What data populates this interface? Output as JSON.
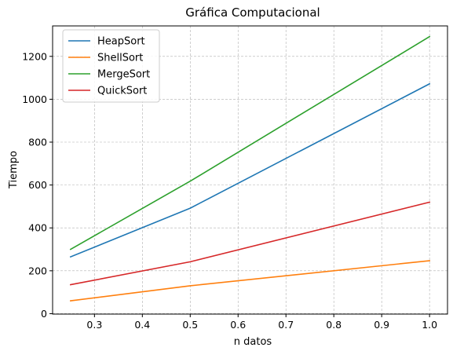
{
  "chart_data": {
    "type": "line",
    "title": "Gráfica Computacional",
    "xlabel": "n datos",
    "ylabel": "Tiempo",
    "x": [
      0.25,
      0.5,
      1.0
    ],
    "xlim": [
      0.2125,
      1.0375
    ],
    "ylim": [
      -2,
      1342
    ],
    "xticks": [
      0.3,
      0.4,
      0.5,
      0.6,
      0.7,
      0.8,
      0.9,
      1.0
    ],
    "xtick_labels": [
      "0.3",
      "0.4",
      "0.5",
      "0.6",
      "0.7",
      "0.8",
      "0.9",
      "1.0"
    ],
    "yticks": [
      0,
      200,
      400,
      600,
      800,
      1000,
      1200
    ],
    "ytick_labels": [
      "0",
      "200",
      "400",
      "600",
      "800",
      "1000",
      "1200"
    ],
    "grid": true,
    "legend_position": "top-left",
    "series": [
      {
        "name": "HeapSort",
        "color": "#1f77b4",
        "values": [
          265,
          492,
          1072
        ]
      },
      {
        "name": "ShellSort",
        "color": "#ff7f0e",
        "values": [
          60,
          130,
          247
        ]
      },
      {
        "name": "MergeSort",
        "color": "#2ca02c",
        "values": [
          300,
          618,
          1292
        ]
      },
      {
        "name": "QuickSort",
        "color": "#d62728",
        "values": [
          135,
          242,
          520
        ]
      }
    ]
  }
}
